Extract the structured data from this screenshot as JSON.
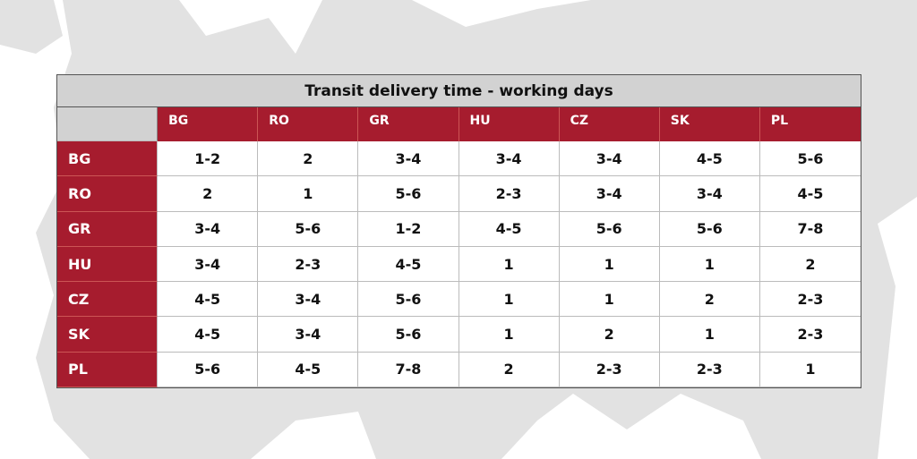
{
  "table": {
    "title": "Transit delivery time - working days",
    "columns": [
      "BG",
      "RO",
      "GR",
      "HU",
      "CZ",
      "SK",
      "PL"
    ],
    "rows": [
      {
        "label": "BG",
        "cells": [
          "1-2",
          2,
          "3-4",
          "3-4",
          "3-4",
          "4-5",
          "5-6"
        ]
      },
      {
        "label": "RO",
        "cells": [
          2,
          1,
          "5-6",
          "2-3",
          "3-4",
          "3-4",
          "4-5"
        ]
      },
      {
        "label": "GR",
        "cells": [
          "3-4",
          "5-6",
          "1-2",
          "4-5",
          "5-6",
          "5-6",
          "7-8"
        ]
      },
      {
        "label": "HU",
        "cells": [
          "3-4",
          "2-3",
          "4-5",
          1,
          1,
          1,
          2
        ]
      },
      {
        "label": "CZ",
        "cells": [
          "4-5",
          "3-4",
          "5-6",
          1,
          1,
          2,
          "2-3"
        ]
      },
      {
        "label": "SK",
        "cells": [
          "4-5",
          "3-4",
          "5-6",
          1,
          2,
          1,
          "2-3"
        ]
      },
      {
        "label": "PL",
        "cells": [
          "5-6",
          "4-5",
          "7-8",
          2,
          "2-3",
          "2-3",
          1
        ]
      }
    ]
  }
}
